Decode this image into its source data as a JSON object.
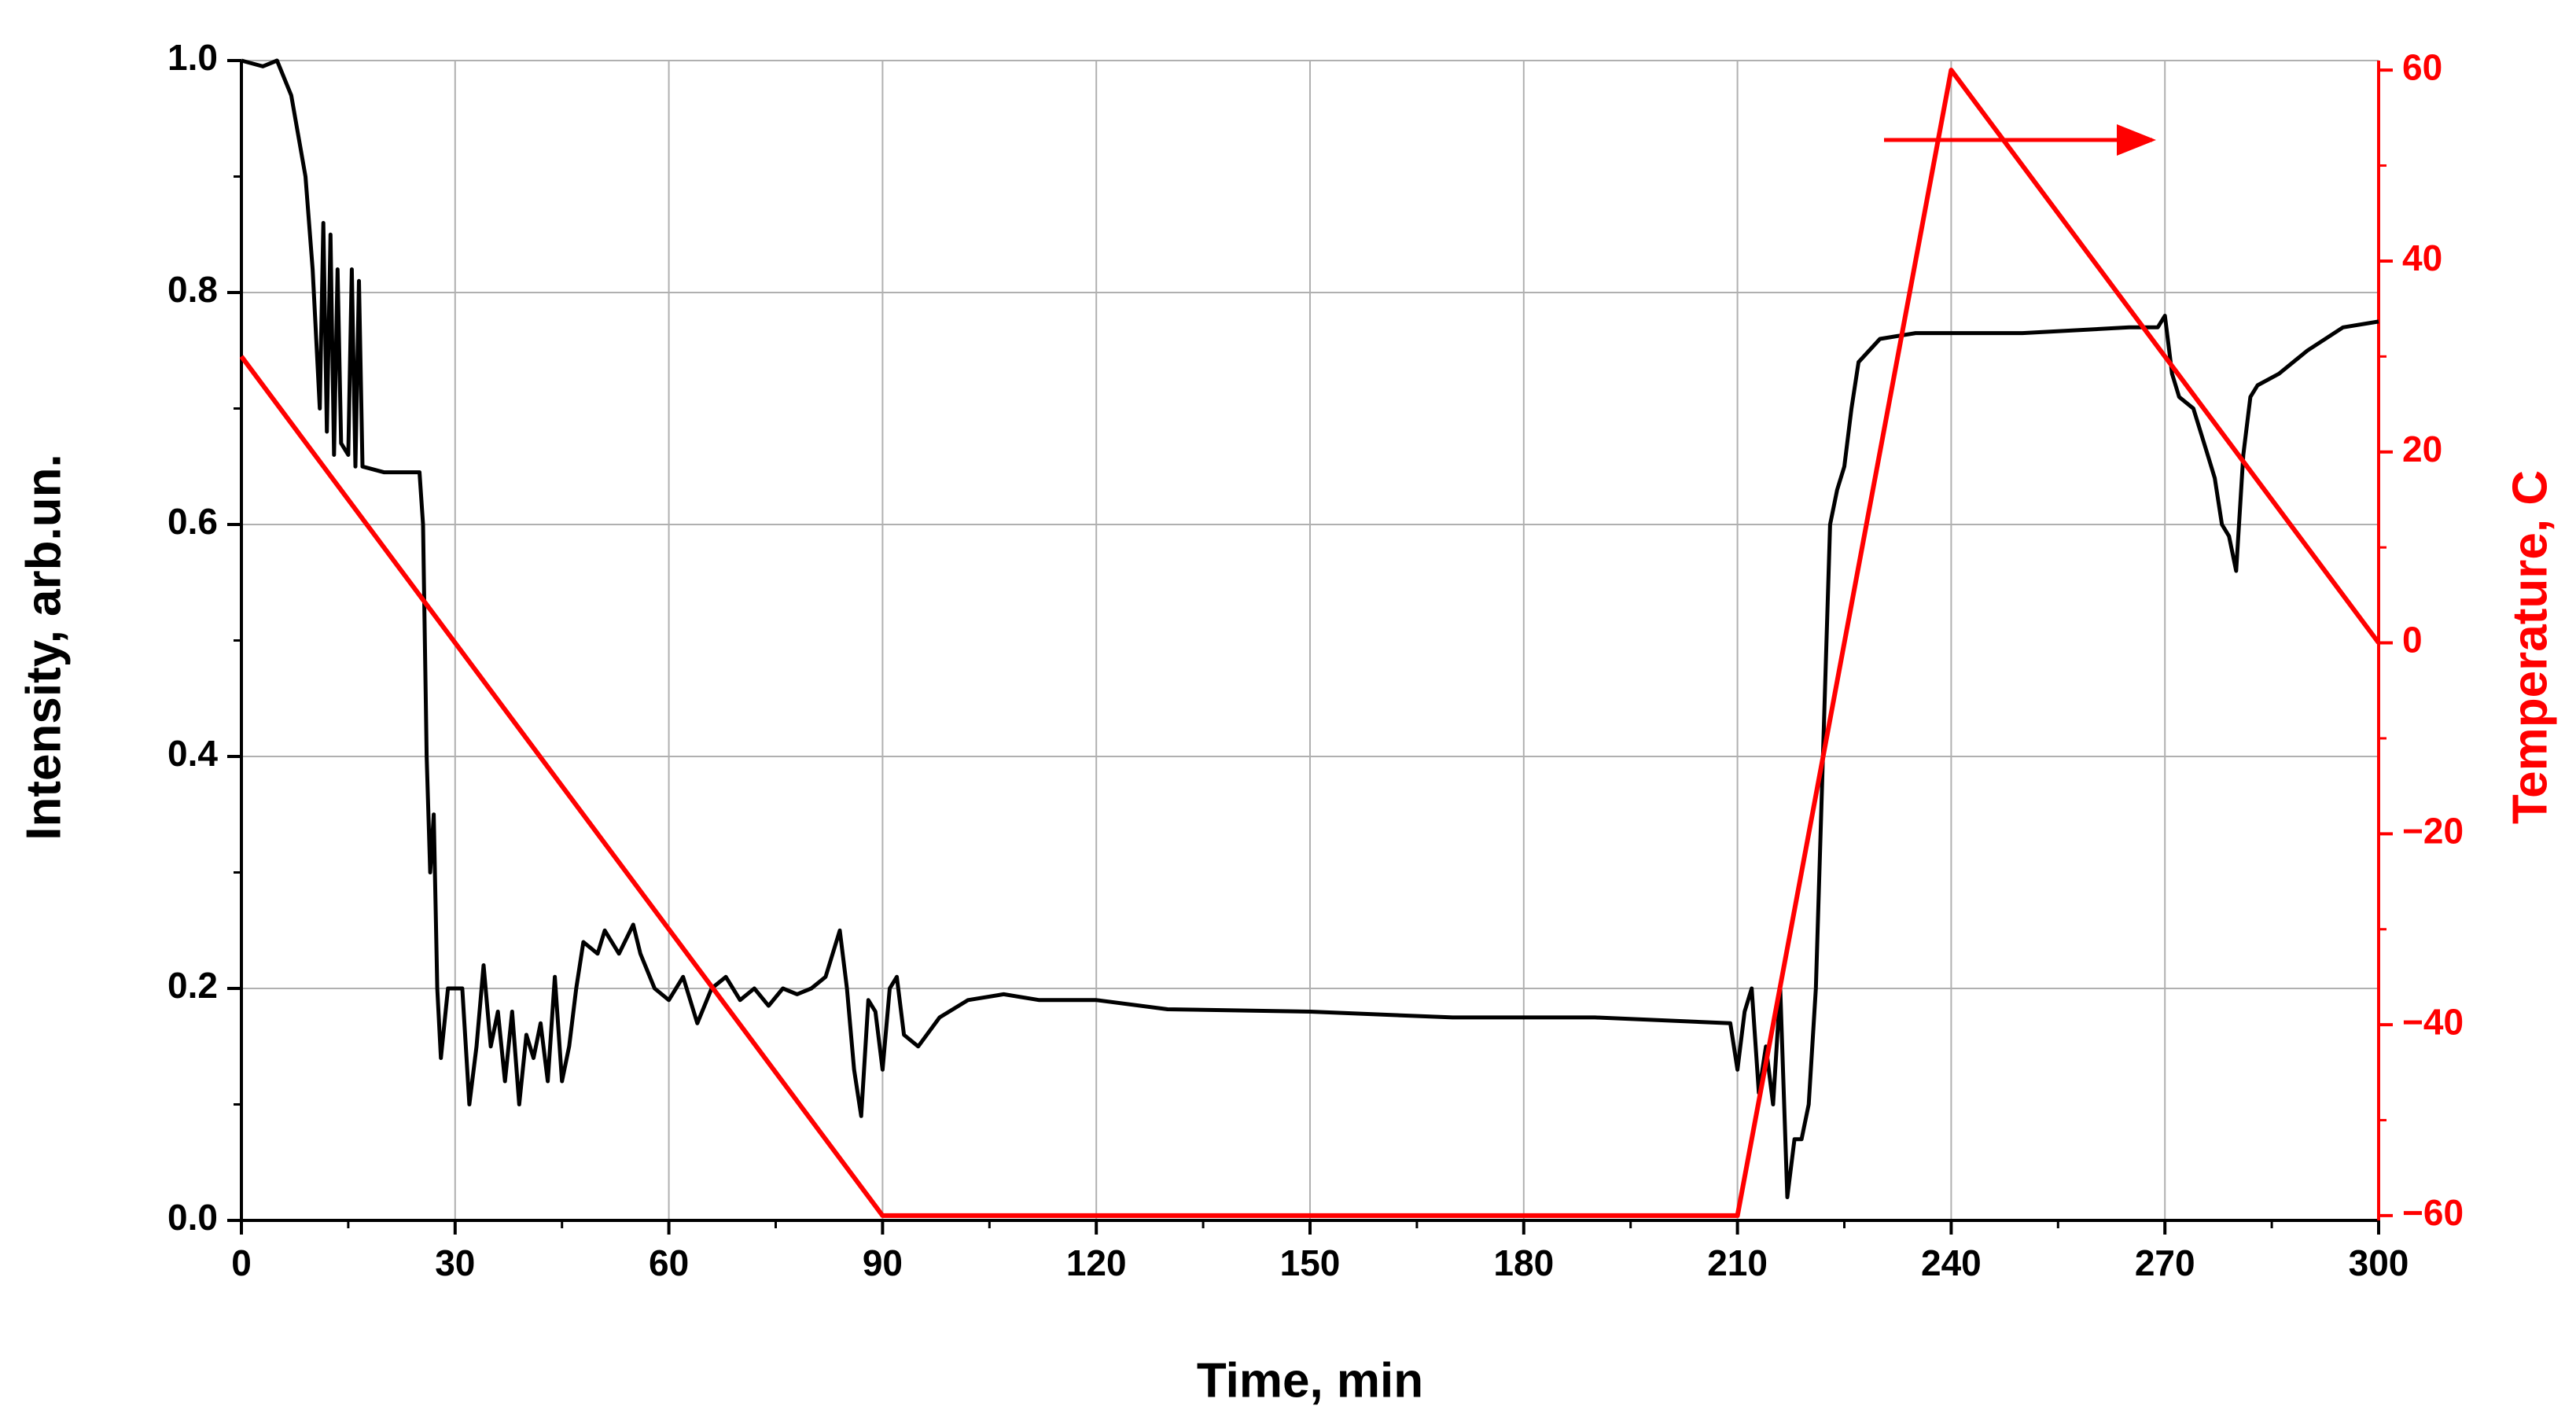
{
  "chart_data": {
    "type": "line",
    "x_label": "Time, min",
    "y_label": "Intensity, arb.un.",
    "y2_label": "Temperature, C",
    "xlim": [
      0,
      300
    ],
    "xticks": [
      0,
      30,
      60,
      90,
      120,
      150,
      180,
      210,
      240,
      270,
      300
    ],
    "ylim": [
      0,
      1.0
    ],
    "yticks": [
      {
        "value": 0,
        "label": "0.0"
      },
      {
        "value": 0.2,
        "label": "0.2"
      },
      {
        "value": 0.4,
        "label": "0.4"
      },
      {
        "value": 0.6,
        "label": "0.6"
      },
      {
        "value": 0.8,
        "label": "0.8"
      },
      {
        "value": 1.0,
        "label": "1.0"
      }
    ],
    "y2lim": [
      -60.5,
      61
    ],
    "y2ticks": [
      {
        "value": -60,
        "label": "−60"
      },
      {
        "value": -40,
        "label": "−40"
      },
      {
        "value": -20,
        "label": "−20"
      },
      0,
      20,
      40,
      60
    ],
    "y2color": "#ff0000",
    "grid": true,
    "series": [
      {
        "color": "#000000",
        "x": [
          0,
          3,
          5,
          7,
          9,
          10,
          11,
          11.5,
          12,
          12.5,
          13,
          13.5,
          14,
          15,
          15.5,
          16,
          16.5,
          17,
          20,
          25,
          25.5,
          26,
          26.5,
          27,
          27.5,
          28,
          29,
          30,
          31,
          32,
          33,
          34,
          35,
          36,
          37,
          38,
          39,
          40,
          41,
          42,
          43,
          44,
          45,
          46,
          47,
          48,
          50,
          51,
          52,
          53,
          55,
          56,
          58,
          60,
          62,
          64,
          66,
          68,
          70,
          72,
          74,
          76,
          78,
          80,
          82,
          84,
          85,
          86,
          87,
          88,
          89,
          90,
          91,
          92,
          93,
          95,
          98,
          102,
          107,
          112,
          120,
          130,
          150,
          170,
          190,
          209,
          210,
          211,
          212,
          213,
          214,
          215,
          216,
          217,
          218,
          219,
          220,
          221,
          222,
          223,
          224,
          225,
          226,
          227,
          230,
          235,
          250,
          265,
          269,
          270,
          271,
          272,
          274,
          276,
          277,
          278,
          279,
          280,
          281,
          282,
          283,
          286,
          290,
          295,
          300
        ],
        "values": [
          1.0,
          0.995,
          1.0,
          0.97,
          0.9,
          0.82,
          0.7,
          0.86,
          0.68,
          0.85,
          0.66,
          0.82,
          0.67,
          0.66,
          0.82,
          0.65,
          0.81,
          0.65,
          0.645,
          0.645,
          0.6,
          0.4,
          0.3,
          0.35,
          0.2,
          0.14,
          0.2,
          0.2,
          0.2,
          0.1,
          0.15,
          0.22,
          0.15,
          0.18,
          0.12,
          0.18,
          0.1,
          0.16,
          0.14,
          0.17,
          0.12,
          0.21,
          0.12,
          0.15,
          0.2,
          0.24,
          0.23,
          0.25,
          0.24,
          0.23,
          0.255,
          0.23,
          0.2,
          0.19,
          0.21,
          0.17,
          0.2,
          0.21,
          0.19,
          0.2,
          0.185,
          0.2,
          0.195,
          0.2,
          0.21,
          0.25,
          0.2,
          0.13,
          0.09,
          0.19,
          0.18,
          0.13,
          0.2,
          0.21,
          0.16,
          0.15,
          0.175,
          0.19,
          0.195,
          0.19,
          0.19,
          0.182,
          0.18,
          0.175,
          0.175,
          0.17,
          0.13,
          0.18,
          0.2,
          0.11,
          0.15,
          0.1,
          0.2,
          0.02,
          0.07,
          0.07,
          0.1,
          0.2,
          0.4,
          0.6,
          0.63,
          0.65,
          0.7,
          0.74,
          0.76,
          0.765,
          0.765,
          0.77,
          0.77,
          0.78,
          0.73,
          0.71,
          0.7,
          0.66,
          0.64,
          0.6,
          0.59,
          0.56,
          0.66,
          0.71,
          0.72,
          0.73,
          0.75,
          0.77,
          0.775
        ]
      },
      {
        "color": "#ff0000",
        "axis": "y2",
        "x": [
          0,
          90,
          210,
          240,
          300
        ],
        "values": [
          30,
          -60,
          -60,
          60,
          0
        ]
      }
    ]
  }
}
